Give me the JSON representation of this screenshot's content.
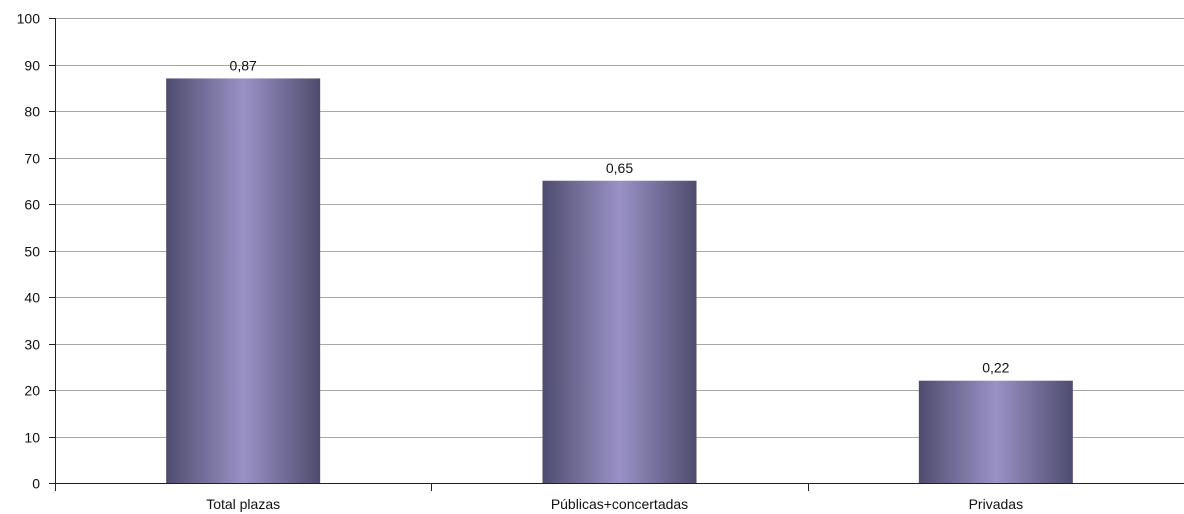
{
  "chart_data": {
    "type": "bar",
    "title": "",
    "xlabel": "",
    "ylabel": "",
    "categories": [
      "Total plazas",
      "Públicas+concertadas",
      "Privadas"
    ],
    "values": [
      87,
      65,
      22
    ],
    "data_labels": [
      "0,87",
      "0,65",
      "0,22"
    ],
    "ylim": [
      0,
      100
    ],
    "yticks": [
      0,
      10,
      20,
      30,
      40,
      50,
      60,
      70,
      80,
      90,
      100
    ],
    "ytick_labels": [
      "0",
      "10",
      "20",
      "30",
      "40",
      "50",
      "60",
      "70",
      "80",
      "90",
      "100"
    ],
    "grid": true,
    "legend": "none",
    "colors": {
      "bar_edge": "#4e4c6e",
      "bar_center": "#9a92c6",
      "grid": "#a8a8a8",
      "axis": "#222222"
    }
  }
}
